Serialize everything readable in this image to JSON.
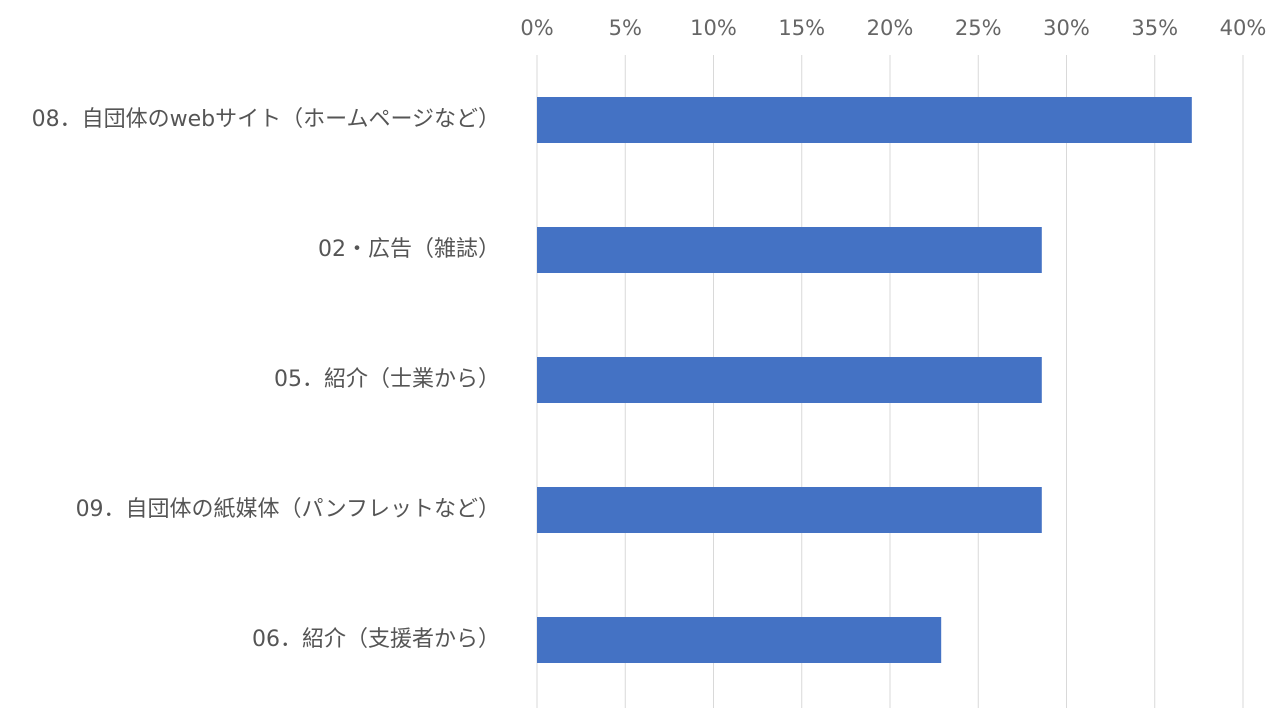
{
  "chart_data": {
    "type": "bar",
    "orientation": "horizontal",
    "categories": [
      "08．自団体のwebサイト（ホームページなど）",
      "02・広告（雑誌）",
      "05．紹介（士業から）",
      "09．自団体の紙媒体（パンフレットなど）",
      "06．紹介（支援者から）"
    ],
    "values": [
      37.1,
      28.6,
      28.6,
      28.6,
      22.9
    ],
    "xlim": [
      0,
      40
    ],
    "x_ticks": [
      "0%",
      "5%",
      "10%",
      "15%",
      "20%",
      "25%",
      "30%",
      "35%",
      "40%"
    ],
    "x_tick_values": [
      0,
      5,
      10,
      15,
      20,
      25,
      30,
      35,
      40
    ],
    "x_axis_position": "top",
    "grid": true,
    "bar_color": "#4472C4",
    "grid_color": "#D9D9D9",
    "title": "",
    "xlabel": "",
    "ylabel": ""
  }
}
